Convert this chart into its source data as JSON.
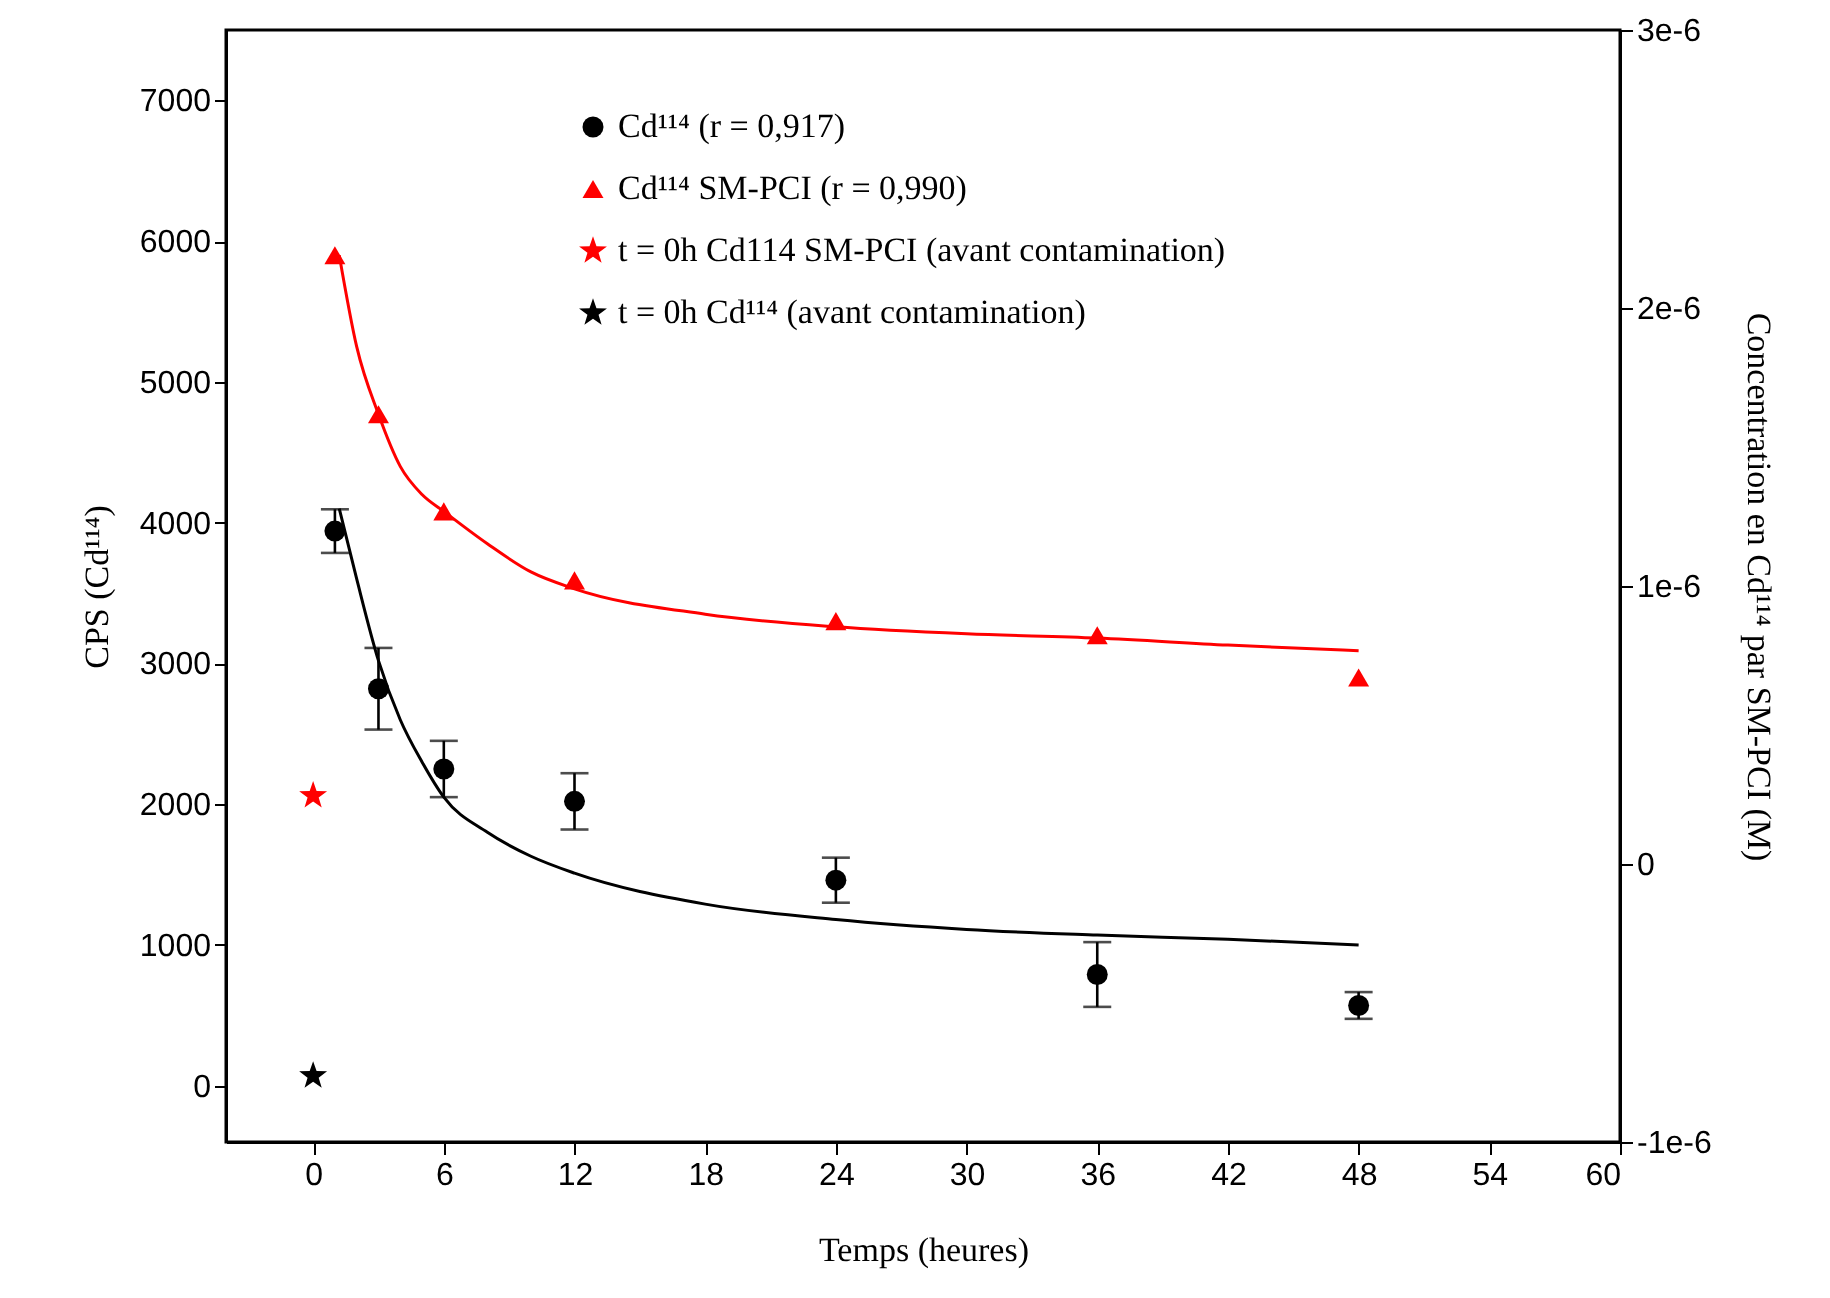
{
  "chart_data": {
    "type": "scatter",
    "xlabel": "Temps (heures)",
    "ylabel": "CPS (Cd¹¹⁴)",
    "y2label": "Concentration en Cd¹¹⁴ par SM-PCI (M)",
    "xlim": [
      -4,
      60
    ],
    "xticks": [
      0,
      6,
      12,
      18,
      24,
      30,
      36,
      42,
      48,
      54,
      60
    ],
    "ylim": [
      -400,
      7500
    ],
    "yticks": [
      0,
      1000,
      2000,
      3000,
      4000,
      5000,
      6000,
      7000
    ],
    "y2lim": [
      -1e-06,
      3e-06
    ],
    "y2ticks": [
      {
        "value": -1e-06,
        "label": "-1e-6"
      },
      0,
      {
        "value": 1e-06,
        "label": "1e-6"
      },
      {
        "value": 2e-06,
        "label": "2e-6"
      },
      {
        "value": 3e-06,
        "label": "3e-6"
      }
    ],
    "grid": false,
    "legend": "top",
    "series": [
      {
        "name": "Cd¹¹⁴ (r = 0,917)",
        "marker": "circle",
        "color": "#000000",
        "x": [
          1,
          3,
          6,
          12,
          24,
          36,
          48
        ],
        "values": [
          3940,
          2820,
          2250,
          2020,
          1460,
          790,
          570
        ],
        "errors": [
          155,
          290,
          200,
          200,
          160,
          230,
          95
        ]
      },
      {
        "name": "Cd¹¹⁴ SM-PCI (r = 0,990)",
        "marker": "triangle",
        "color": "#ff0000",
        "x": [
          1,
          3,
          6,
          12,
          24,
          36,
          48
        ],
        "values": [
          5900,
          4770,
          4080,
          3590,
          3300,
          3200,
          2900
        ]
      },
      {
        "name": "t = 0h Cd114 SM-PCI (avant contamination)",
        "marker": "star",
        "color": "#ff0000",
        "x": [
          0
        ],
        "values": [
          2060
        ]
      },
      {
        "name": "t = 0h Cd¹¹⁴ (avant contamination)",
        "marker": "star",
        "color": "#000000",
        "x": [
          0
        ],
        "values": [
          70
        ]
      },
      {
        "type": "line",
        "marker": "none",
        "line_style": "solid",
        "color": "#000000",
        "x": [
          1.2,
          2,
          3,
          4,
          5,
          6,
          8,
          10,
          12,
          18,
          24,
          30,
          36,
          42,
          48
        ],
        "values": [
          4100,
          3600,
          3020,
          2600,
          2300,
          2050,
          1800,
          1630,
          1510,
          1290,
          1180,
          1110,
          1070,
          1040,
          1000
        ]
      },
      {
        "type": "line",
        "marker": "none",
        "line_style": "solid",
        "color": "#ff0000",
        "x": [
          1.2,
          2,
          3,
          4,
          5,
          6,
          8,
          10,
          12,
          18,
          24,
          30,
          36,
          42,
          48
        ],
        "values": [
          5900,
          5250,
          4770,
          4400,
          4200,
          4080,
          3850,
          3650,
          3530,
          3350,
          3260,
          3210,
          3180,
          3130,
          3090
        ]
      }
    ]
  }
}
